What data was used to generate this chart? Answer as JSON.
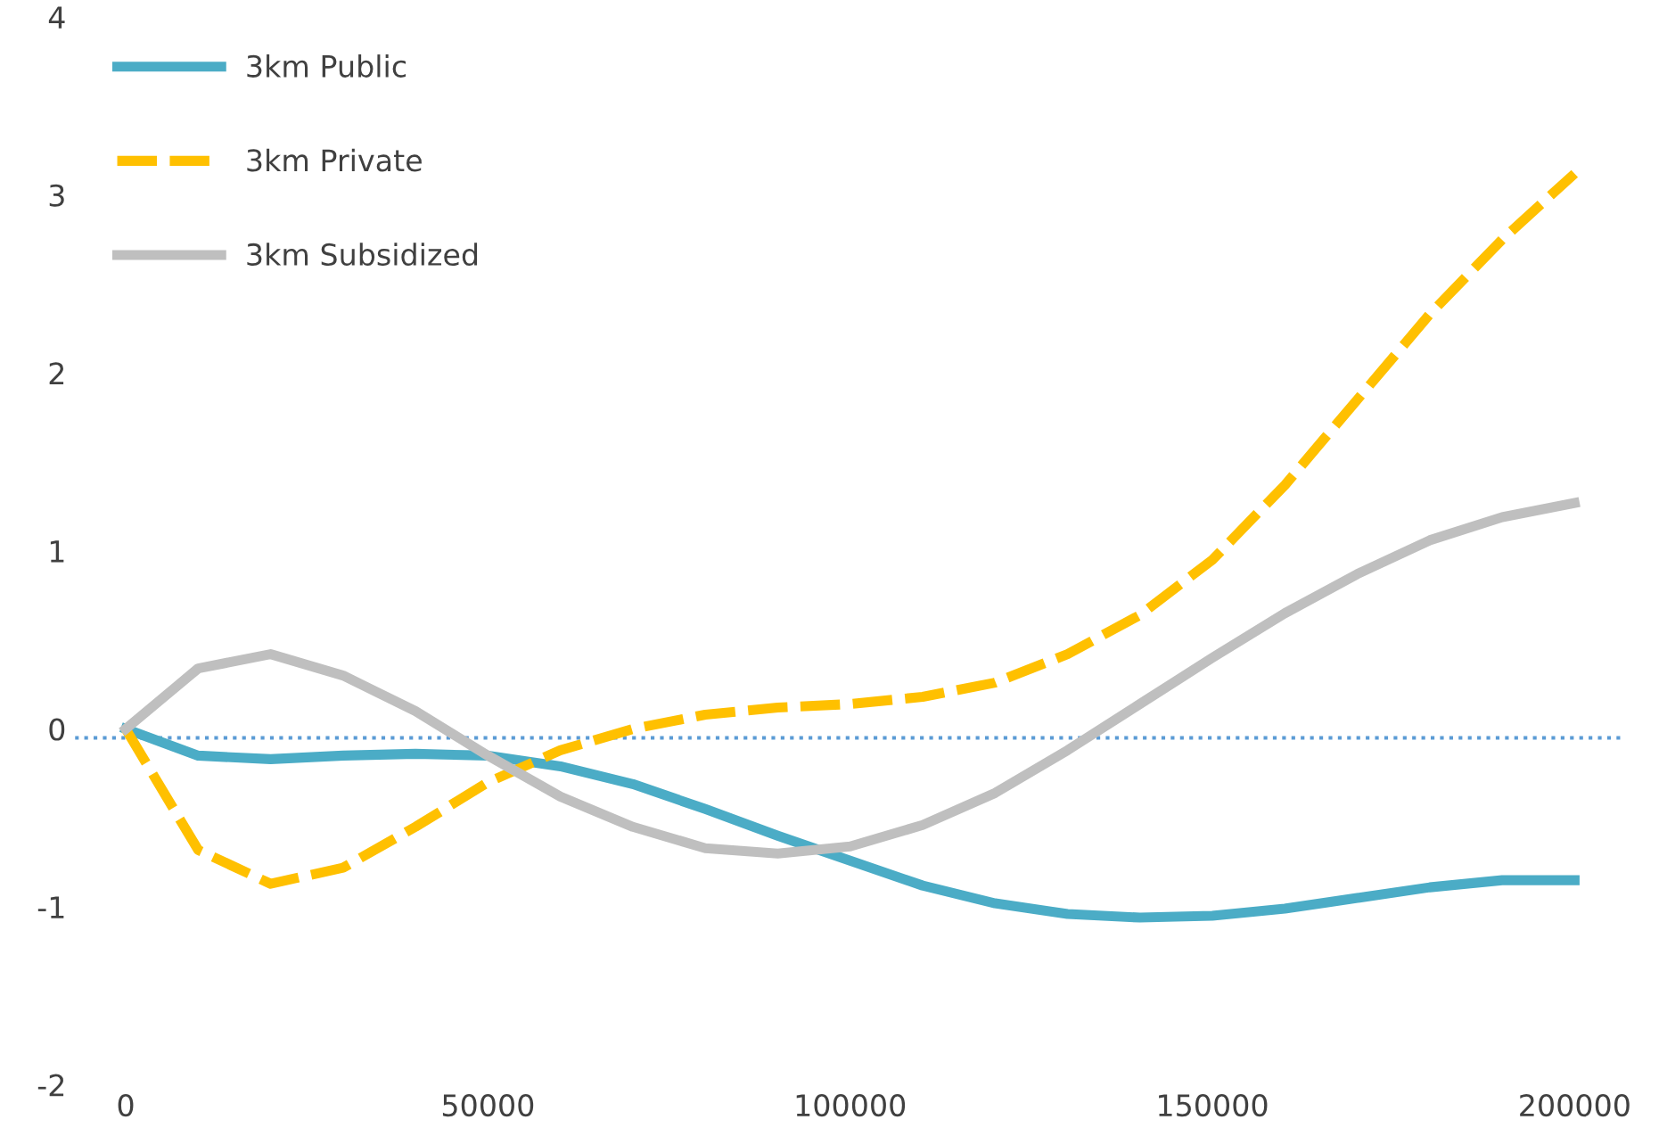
{
  "chart_data": {
    "type": "line",
    "x": [
      0,
      10000,
      20000,
      30000,
      40000,
      50000,
      60000,
      70000,
      80000,
      90000,
      100000,
      110000,
      120000,
      130000,
      140000,
      150000,
      160000,
      170000,
      180000,
      190000,
      200000
    ],
    "series": [
      {
        "name": "3km Public",
        "color": "#4bacc6",
        "line_style": "solid",
        "values": [
          0,
          -0.15,
          -0.17,
          -0.15,
          -0.14,
          -0.15,
          -0.21,
          -0.31,
          -0.45,
          -0.6,
          -0.74,
          -0.88,
          -0.98,
          -1.04,
          -1.06,
          -1.05,
          -1.01,
          -0.95,
          -0.89,
          -0.85,
          -0.85
        ]
      },
      {
        "name": "3km Private",
        "color": "#ffc000",
        "line_style": "dashed",
        "values": [
          0,
          -0.68,
          -0.87,
          -0.78,
          -0.55,
          -0.3,
          -0.12,
          0.0,
          0.08,
          0.12,
          0.14,
          0.18,
          0.26,
          0.42,
          0.64,
          0.95,
          1.37,
          1.85,
          2.33,
          2.75,
          3.12
        ]
      },
      {
        "name": "3km Subsidized",
        "color": "#bfbfbf",
        "line_style": "solid",
        "values": [
          0,
          0.34,
          0.42,
          0.3,
          0.1,
          -0.15,
          -0.38,
          -0.55,
          -0.67,
          -0.7,
          -0.66,
          -0.54,
          -0.36,
          -0.12,
          0.14,
          0.4,
          0.65,
          0.87,
          1.06,
          1.19,
          1.27
        ]
      }
    ],
    "xlim": [
      -7000,
      207000
    ],
    "xticks": [
      0,
      50000,
      100000,
      150000,
      200000
    ],
    "ylim": [
      -2,
      4
    ],
    "yticks": [
      -2,
      -1,
      0,
      1,
      2,
      3,
      4
    ],
    "ref_lines": [
      {
        "axis": "y",
        "value": -0.05,
        "color": "#5b9bd5",
        "line_style": "dotted"
      }
    ],
    "grid": false,
    "legend": "top left",
    "marker": "none"
  }
}
